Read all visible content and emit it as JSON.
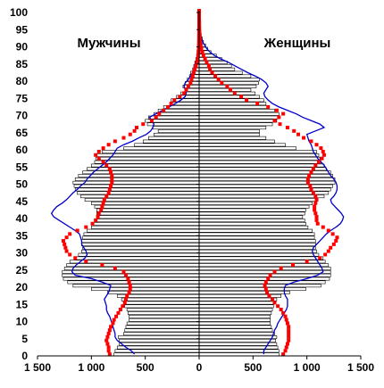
{
  "chart_data": {
    "type": "bar",
    "orientation": "horizontal-pyramid",
    "labels": {
      "left": "Мужчины",
      "right": "Женщины"
    },
    "x_tick_labels": [
      "1 500",
      "1 000",
      "500",
      "0",
      "500",
      "1 000",
      "1 500"
    ],
    "x_tick_values": [
      -1500,
      -1000,
      -500,
      0,
      500,
      1000,
      1500
    ],
    "xlim": [
      -1500,
      1500
    ],
    "y_tick_labels": [
      "0",
      "5",
      "10",
      "15",
      "20",
      "25",
      "30",
      "35",
      "40",
      "45",
      "50",
      "55",
      "60",
      "65",
      "70",
      "75",
      "80",
      "85",
      "90",
      "95",
      "100"
    ],
    "ylim": [
      0,
      100
    ],
    "colors": {
      "bars_fill": "#ffffff",
      "bars_stroke": "#000000",
      "blue_line": "#0000cc",
      "red_dots": "#ff0000"
    },
    "ages": [
      0,
      1,
      2,
      3,
      4,
      5,
      6,
      7,
      8,
      9,
      10,
      11,
      12,
      13,
      14,
      15,
      16,
      17,
      18,
      19,
      20,
      21,
      22,
      23,
      24,
      25,
      26,
      27,
      28,
      29,
      30,
      31,
      32,
      33,
      34,
      35,
      36,
      37,
      38,
      39,
      40,
      41,
      42,
      43,
      44,
      45,
      46,
      47,
      48,
      49,
      50,
      51,
      52,
      53,
      54,
      55,
      56,
      57,
      58,
      59,
      60,
      61,
      62,
      63,
      64,
      65,
      66,
      67,
      68,
      69,
      70,
      71,
      72,
      73,
      74,
      75,
      76,
      77,
      78,
      79,
      80,
      81,
      82,
      83,
      84,
      85,
      86,
      87,
      88,
      89,
      90,
      91,
      92,
      93,
      94,
      95,
      96,
      97,
      98,
      99,
      100
    ],
    "series": [
      {
        "side": "male",
        "kind": "bars",
        "values": [
          -790,
          -780,
          -760,
          -740,
          -740,
          -750,
          -700,
          -690,
          -680,
          -670,
          -650,
          -650,
          -660,
          -670,
          -690,
          -700,
          -720,
          -760,
          -850,
          -1000,
          -1170,
          -1220,
          -1260,
          -1270,
          -1270,
          -1250,
          -1230,
          -1200,
          -1150,
          -1120,
          -1090,
          -1080,
          -1090,
          -1090,
          -1080,
          -1070,
          -1040,
          -1000,
          -980,
          -970,
          -940,
          -950,
          -950,
          -970,
          -1000,
          -1060,
          -1100,
          -1130,
          -1150,
          -1160,
          -1170,
          -1150,
          -1120,
          -1080,
          -1040,
          -1000,
          -970,
          -960,
          -950,
          -900,
          -700,
          -600,
          -520,
          -470,
          -420,
          -380,
          -430,
          -480,
          -500,
          -470,
          -420,
          -380,
          -330,
          -270,
          -260,
          -210,
          -170,
          -130,
          -150,
          -130,
          -110,
          -90,
          -80,
          -60,
          -50,
          -40,
          -30,
          -20,
          -20,
          -15,
          -10,
          -8,
          -6,
          -5,
          -4,
          -3,
          -2,
          -2,
          -1,
          -1,
          0
        ]
      },
      {
        "side": "female",
        "kind": "bars",
        "values": [
          740,
          740,
          730,
          720,
          710,
          720,
          700,
          680,
          670,
          660,
          660,
          660,
          670,
          680,
          690,
          700,
          720,
          760,
          840,
          990,
          1130,
          1170,
          1210,
          1220,
          1220,
          1220,
          1200,
          1170,
          1150,
          1110,
          1090,
          1080,
          1080,
          1080,
          1070,
          1070,
          1050,
          1010,
          990,
          980,
          960,
          980,
          990,
          1020,
          1050,
          1100,
          1160,
          1200,
          1220,
          1240,
          1260,
          1260,
          1240,
          1220,
          1180,
          1160,
          1130,
          1120,
          1110,
          1090,
          900,
          800,
          700,
          620,
          560,
          560,
          620,
          680,
          720,
          730,
          740,
          700,
          650,
          620,
          600,
          560,
          520,
          480,
          530,
          550,
          560,
          480,
          400,
          330,
          300,
          260,
          210,
          160,
          110,
          80,
          60,
          40,
          30,
          20,
          15,
          10,
          6,
          4,
          2,
          1,
          0
        ]
      },
      {
        "side": "male",
        "kind": "line",
        "values": [
          -600,
          -630,
          -680,
          -720,
          -760,
          -780,
          -780,
          -790,
          -800,
          -810,
          -820,
          -830,
          -850,
          -860,
          -860,
          -870,
          -880,
          -860,
          -840,
          -830,
          -820,
          -900,
          -1000,
          -1150,
          -1180,
          -1170,
          -1140,
          -1100,
          -1060,
          -1040,
          -1050,
          -1070,
          -1090,
          -1090,
          -1100,
          -1110,
          -1150,
          -1200,
          -1250,
          -1300,
          -1350,
          -1370,
          -1350,
          -1320,
          -1270,
          -1230,
          -1200,
          -1170,
          -1130,
          -1100,
          -1060,
          -1040,
          -1010,
          -980,
          -940,
          -900,
          -860,
          -830,
          -800,
          -780,
          -760,
          -700,
          -620,
          -560,
          -490,
          -450,
          -430,
          -420,
          -440,
          -460,
          -400,
          -340,
          -280,
          -220,
          -170,
          -130,
          -120,
          -130,
          -140,
          -130,
          -100,
          -80,
          -60,
          -50,
          -40,
          -30,
          -20,
          -15,
          -10,
          -8,
          -6,
          -4,
          -3,
          -2,
          -1,
          -1,
          0,
          0,
          0,
          0,
          0
        ]
      },
      {
        "side": "female",
        "kind": "line",
        "values": [
          600,
          600,
          620,
          640,
          660,
          680,
          690,
          700,
          720,
          730,
          750,
          770,
          790,
          810,
          820,
          820,
          820,
          800,
          790,
          790,
          800,
          880,
          1000,
          1100,
          1150,
          1140,
          1120,
          1100,
          1080,
          1060,
          1050,
          1060,
          1090,
          1120,
          1150,
          1180,
          1220,
          1270,
          1310,
          1330,
          1340,
          1320,
          1290,
          1260,
          1230,
          1220,
          1250,
          1270,
          1280,
          1280,
          1270,
          1250,
          1220,
          1200,
          1180,
          1160,
          1130,
          1100,
          1080,
          1060,
          1050,
          1040,
          1020,
          1010,
          1000,
          1080,
          1160,
          1120,
          1040,
          960,
          900,
          820,
          740,
          680,
          640,
          610,
          600,
          620,
          640,
          620,
          580,
          520,
          450,
          390,
          330,
          270,
          200,
          140,
          100,
          70,
          50,
          30,
          20,
          15,
          10,
          6,
          4,
          2,
          1,
          0,
          0
        ]
      },
      {
        "side": "male",
        "kind": "dots",
        "values": [
          -830,
          -840,
          -840,
          -850,
          -860,
          -850,
          -840,
          -830,
          -820,
          -800,
          -790,
          -770,
          -750,
          -730,
          -710,
          -690,
          -680,
          -670,
          -650,
          -640,
          -640,
          -650,
          -660,
          -680,
          -700,
          -780,
          -900,
          -1050,
          -1150,
          -1200,
          -1230,
          -1240,
          -1250,
          -1260,
          -1230,
          -1200,
          -1130,
          -1050,
          -990,
          -960,
          -940,
          -930,
          -910,
          -900,
          -890,
          -880,
          -860,
          -840,
          -830,
          -820,
          -810,
          -810,
          -810,
          -820,
          -830,
          -860,
          -890,
          -930,
          -960,
          -930,
          -890,
          -840,
          -780,
          -700,
          -640,
          -600,
          -580,
          -520,
          -440,
          -400,
          -370,
          -330,
          -290,
          -260,
          -230,
          -180,
          -140,
          -120,
          -100,
          -80,
          -70,
          -60,
          -50,
          -40,
          -30,
          -20,
          -15,
          -10,
          -6,
          -4,
          -3,
          -2,
          -1,
          -1,
          0,
          0,
          0,
          0,
          0,
          0,
          0
        ]
      },
      {
        "side": "female",
        "kind": "dots",
        "values": [
          780,
          800,
          810,
          820,
          830,
          830,
          830,
          830,
          830,
          820,
          810,
          800,
          780,
          760,
          730,
          700,
          680,
          650,
          630,
          620,
          610,
          620,
          640,
          660,
          700,
          760,
          870,
          1000,
          1120,
          1170,
          1200,
          1220,
          1250,
          1270,
          1280,
          1240,
          1200,
          1150,
          1100,
          1090,
          1090,
          1080,
          1070,
          1070,
          1080,
          1090,
          1080,
          1060,
          1040,
          1030,
          1010,
          1010,
          1020,
          1040,
          1060,
          1080,
          1110,
          1140,
          1160,
          1150,
          1130,
          1090,
          1040,
          970,
          920,
          880,
          820,
          750,
          700,
          740,
          780,
          720,
          640,
          540,
          440,
          390,
          330,
          290,
          260,
          210,
          180,
          150,
          120,
          100,
          90,
          70,
          55,
          40,
          30,
          20,
          15,
          10,
          6,
          4,
          3,
          2,
          1,
          1,
          0,
          0,
          0
        ]
      }
    ]
  }
}
